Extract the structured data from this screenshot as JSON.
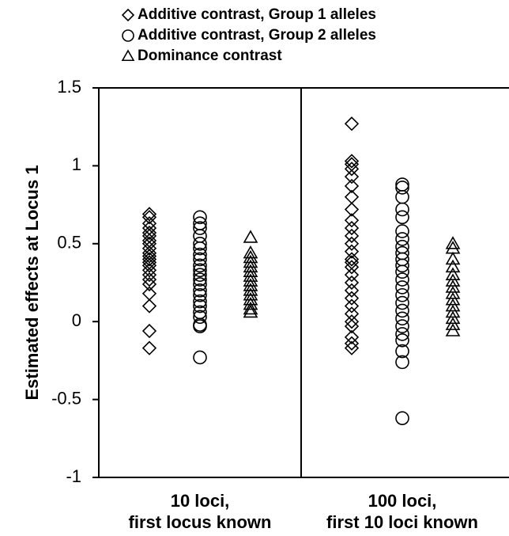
{
  "chart_data": {
    "type": "strip",
    "ylabel": "Estimated effects at Locus 1",
    "categories": [
      [
        "10 loci,",
        "first locus known"
      ],
      [
        "100 loci,",
        "first 10 loci known"
      ]
    ],
    "ylim": [
      -1,
      1.5
    ],
    "yticks": [
      1.5,
      1,
      0.5,
      0,
      -0.5,
      -1
    ],
    "series": [
      {
        "name": "Additive contrast, Group 1 alleles",
        "marker": "diamond",
        "color": "#000000",
        "values": [
          [
            0.69,
            0.67,
            0.63,
            0.6,
            0.57,
            0.55,
            0.52,
            0.5,
            0.47,
            0.44,
            0.42,
            0.4,
            0.38,
            0.36,
            0.33,
            0.3,
            0.27,
            0.24,
            0.18,
            0.1,
            -0.06,
            -0.17
          ],
          [
            1.27,
            1.03,
            1.01,
            0.98,
            0.93,
            0.87,
            0.8,
            0.72,
            0.65,
            0.6,
            0.55,
            0.5,
            0.45,
            0.4,
            0.38,
            0.35,
            0.3,
            0.25,
            0.2,
            0.15,
            0.1,
            0.05,
            0,
            -0.03,
            -0.1,
            -0.14,
            -0.17
          ]
        ]
      },
      {
        "name": "Additive contrast, Group 2 alleles",
        "marker": "circle",
        "color": "#000000",
        "values": [
          [
            0.67,
            0.63,
            0.6,
            0.55,
            0.5,
            0.47,
            0.43,
            0.4,
            0.36,
            0.33,
            0.3,
            0.27,
            0.24,
            0.2,
            0.17,
            0.13,
            0.1,
            0.06,
            0.03,
            -0.02,
            -0.03,
            -0.23
          ],
          [
            0.88,
            0.86,
            0.8,
            0.72,
            0.67,
            0.58,
            0.53,
            0.48,
            0.44,
            0.4,
            0.36,
            0.32,
            0.27,
            0.22,
            0.17,
            0.12,
            0.07,
            0.02,
            -0.03,
            -0.08,
            -0.12,
            -0.19,
            -0.26,
            -0.62
          ]
        ]
      },
      {
        "name": "Dominance contrast",
        "marker": "triangle",
        "color": "#000000",
        "values": [
          [
            0.54,
            0.44,
            0.41,
            0.38,
            0.35,
            0.32,
            0.29,
            0.26,
            0.23,
            0.2,
            0.17,
            0.14,
            0.11,
            0.08,
            0.06
          ],
          [
            0.5,
            0.47,
            0.4,
            0.35,
            0.3,
            0.26,
            0.22,
            0.18,
            0.14,
            0.1,
            0.06,
            0.02,
            -0.02,
            -0.06
          ]
        ]
      }
    ]
  }
}
